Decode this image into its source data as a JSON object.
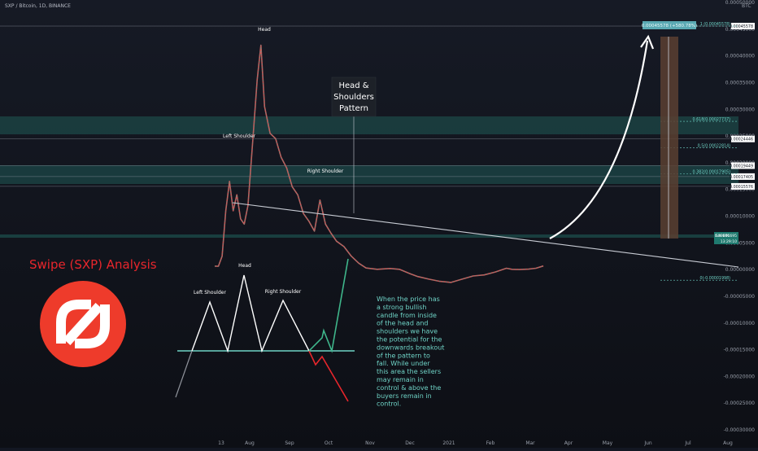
{
  "header": {
    "symbol_line": "SXP / Bitcoin, 1D, BINANCE",
    "currency": "BTC"
  },
  "title": "Swipe (SXP) Analysis",
  "pattern_label": "Head & Shoulders Pattern",
  "pattern_lines": [
    "Head &",
    "Shoulders",
    "Pattern"
  ],
  "price_labels": {
    "head": "Head",
    "left_shoulder": "Left Shoulder",
    "right_shoulder": "Right Shoulder"
  },
  "diagram_labels": {
    "head": "Head",
    "left_shoulder": "Left Shoulder",
    "right_shoulder": "Right Shoulder"
  },
  "commentary": [
    "When the price has",
    "a strong bullish",
    "candle from inside",
    "of the head and",
    "shoulders we have",
    "the potential for the",
    "downwards breakout",
    "of the pattern to",
    "fall. While under",
    "this area the sellers",
    "may remain in",
    "control & above the",
    "buyers remain in",
    "control."
  ],
  "colors": {
    "background": "#131722",
    "title_red": "#e8262c",
    "teal": "#6fd3c6",
    "diagram_bull": "#3fb68b",
    "diagram_bear": "#e8262c",
    "logo_red": "#ee3b2b",
    "target_box": "#5b4031"
  },
  "chart_data": {
    "type": "line",
    "y_axis_ticks": [
      "0.00050000",
      "0.00045000",
      "0.00040000",
      "0.00035000",
      "0.00030000",
      "0.00025000",
      "0.00020000",
      "0.00015000",
      "0.00010000",
      "0.00005000",
      "0.00000000",
      "-0.00005000",
      "-0.00010000",
      "-0.00015000",
      "-0.00020000",
      "-0.00025000",
      "-0.00030000"
    ],
    "x_axis_ticks": [
      "13",
      "Aug",
      "Sep",
      "Oct",
      "Nov",
      "Dec",
      "2021",
      "Feb",
      "Mar",
      "Apr",
      "May",
      "Jun",
      "Jul",
      "Aug"
    ],
    "ylim": [
      -0.0003,
      0.0005
    ],
    "price_series": [
      {
        "x": 0,
        "y": 6.5e-06
      },
      {
        "x": 2,
        "y": 6.2e-06
      },
      {
        "x": 4,
        "y": 2.5e-05
      },
      {
        "x": 6,
        "y": 0.00011
      },
      {
        "x": 8,
        "y": 0.000165
      },
      {
        "x": 10,
        "y": 0.00011
      },
      {
        "x": 12,
        "y": 0.00014
      },
      {
        "x": 14,
        "y": 9.5e-05
      },
      {
        "x": 16,
        "y": 8.5e-05
      },
      {
        "x": 18,
        "y": 0.00012
      },
      {
        "x": 21,
        "y": 0.00026
      },
      {
        "x": 23,
        "y": 0.000355
      },
      {
        "x": 25,
        "y": 0.00042
      },
      {
        "x": 27,
        "y": 0.000305
      },
      {
        "x": 30,
        "y": 0.000255
      },
      {
        "x": 33,
        "y": 0.000245
      },
      {
        "x": 36,
        "y": 0.00021
      },
      {
        "x": 39,
        "y": 0.00019
      },
      {
        "x": 42,
        "y": 0.000155
      },
      {
        "x": 45,
        "y": 0.00014
      },
      {
        "x": 48,
        "y": 0.000105
      },
      {
        "x": 51,
        "y": 9.05e-05
      },
      {
        "x": 54,
        "y": 7.2e-05
      },
      {
        "x": 57,
        "y": 0.00013
      },
      {
        "x": 60,
        "y": 8.5e-05
      },
      {
        "x": 63,
        "y": 6.8e-05
      },
      {
        "x": 66,
        "y": 5.3e-05
      },
      {
        "x": 70,
        "y": 4.3e-05
      },
      {
        "x": 74,
        "y": 2.5e-05
      },
      {
        "x": 78,
        "y": 1.2e-05
      },
      {
        "x": 82,
        "y": 3e-06
      },
      {
        "x": 88,
        "y": 5e-07
      },
      {
        "x": 95,
        "y": 2e-06
      },
      {
        "x": 100,
        "y": 5e-07
      },
      {
        "x": 106,
        "y": -8e-06
      },
      {
        "x": 110,
        "y": -1.3e-05
      },
      {
        "x": 116,
        "y": -1.8e-05
      },
      {
        "x": 122,
        "y": -2.2e-05
      },
      {
        "x": 128,
        "y": -2.4e-05
      },
      {
        "x": 134,
        "y": -1.8e-05
      },
      {
        "x": 140,
        "y": -1.2e-05
      },
      {
        "x": 146,
        "y": -1e-05
      },
      {
        "x": 152,
        "y": -4.5e-06
      },
      {
        "x": 158,
        "y": 2.5e-06
      },
      {
        "x": 161,
        "y": 5e-07
      },
      {
        "x": 165,
        "y": -2e-08
      },
      {
        "x": 170,
        "y": 8e-07
      },
      {
        "x": 174,
        "y": 2.5e-06
      },
      {
        "x": 178,
        "y": 6.8e-06
      }
    ],
    "horizontal_levels": [
      {
        "y": 0.00045578,
        "label": "0.00045578"
      },
      {
        "y": 0.00024446,
        "label": "0.00024446"
      },
      {
        "y": 0.00019449,
        "label": "0.00019449"
      },
      {
        "y": 0.00017405,
        "label": "0.00017405"
      },
      {
        "y": 0.00015576,
        "label": "0.00015576"
      }
    ],
    "fib_levels": [
      {
        "y": 0.00045578,
        "label": "1 (0.00045578)"
      },
      {
        "y": 0.00027737,
        "label": "0.618(0.00027737)"
      },
      {
        "y": 0.00022814,
        "label": "0.5(0.00022814)"
      },
      {
        "y": 0.00017905,
        "label": "0.382(0.00017905)"
      },
      {
        "y": -1.998e-05,
        "label": "0(-0.00001998)"
      }
    ],
    "current_price": {
      "symbol": "SXPBTC",
      "value": "0.00006695",
      "countdown": "13:29:10"
    },
    "target_label": "0.00045578 (+580.78%)"
  }
}
